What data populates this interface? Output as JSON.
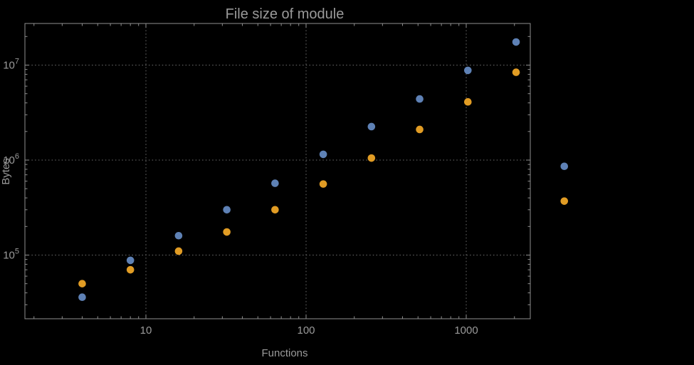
{
  "colors": {
    "background": "#000000",
    "text": "#9a9a9a",
    "frame": "#8f8f8f",
    "grid": "#6f6f6f",
    "series_blue": "#5e81b5",
    "series_orange": "#e19c24"
  },
  "chart_data": {
    "type": "scatter",
    "title": "File size of module",
    "xlabel": "Functions",
    "ylabel": "Bytes",
    "x_scale": "log",
    "y_scale": "log",
    "x_range": [
      1.75,
      2500
    ],
    "y_range": [
      21000,
      27500000
    ],
    "grid": "dotted lines at decade ticks",
    "legend": "none",
    "x_major_ticks": [
      {
        "value": 10,
        "label": "10"
      },
      {
        "value": 100,
        "label": "100"
      },
      {
        "value": 1000,
        "label": "1000"
      }
    ],
    "y_major_ticks": [
      {
        "value": 100000,
        "base": "10",
        "exp": "5"
      },
      {
        "value": 1000000,
        "base": "10",
        "exp": "6"
      },
      {
        "value": 10000000,
        "base": "10",
        "exp": "7"
      }
    ],
    "x": [
      4,
      8,
      16,
      32,
      64,
      128,
      256,
      512,
      1024,
      2048,
      4096
    ],
    "series": [
      {
        "name": "series-1-blue",
        "color": "#5e81b5",
        "values": [
          36000,
          88000,
          160000,
          300000,
          570000,
          1150000,
          2250000,
          4400000,
          8800000,
          17500000,
          860000
        ]
      },
      {
        "name": "series-2-orange",
        "color": "#e19c24",
        "values": [
          50000,
          70000,
          110000,
          175000,
          300000,
          560000,
          1050000,
          2100000,
          4100000,
          8400000,
          370000
        ]
      }
    ]
  }
}
